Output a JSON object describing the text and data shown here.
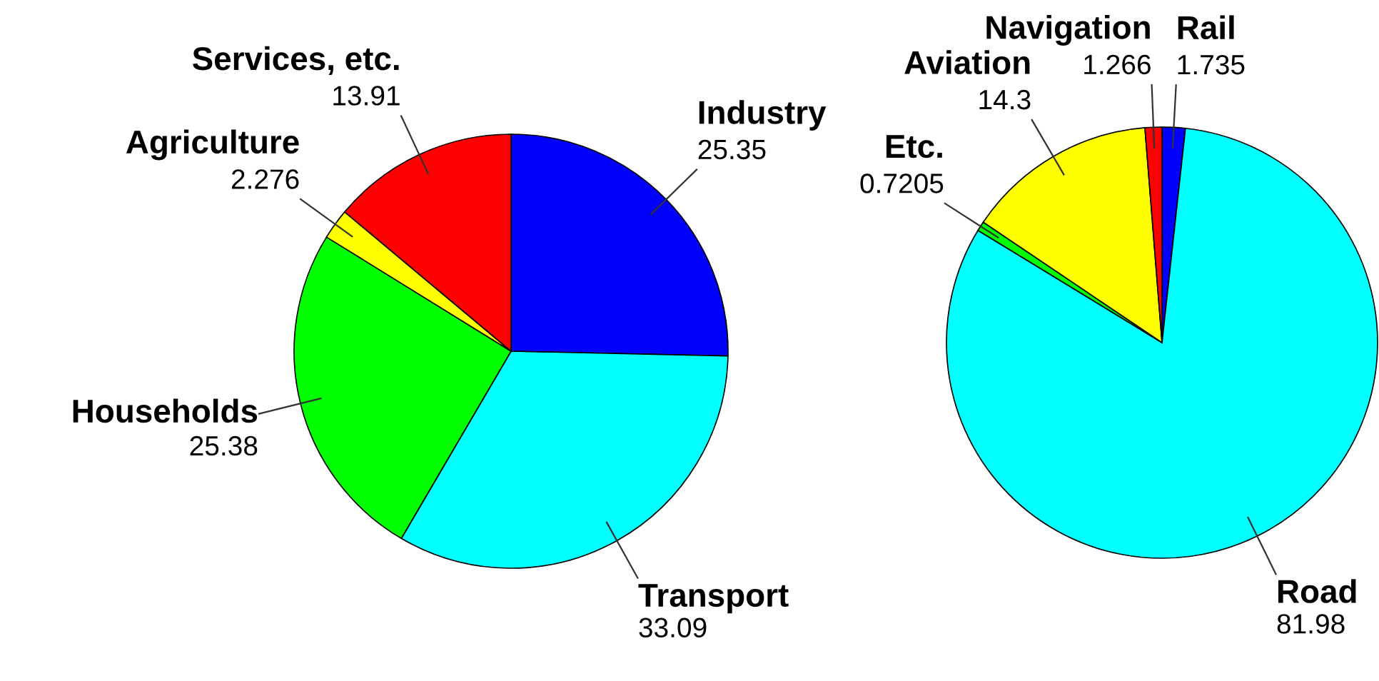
{
  "chart_data": [
    {
      "type": "pie",
      "categories": [
        "Industry",
        "Transport",
        "Households",
        "Agriculture",
        "Services, etc."
      ],
      "values": [
        25.35,
        33.09,
        25.38,
        2.276,
        13.91
      ],
      "colors": [
        "#0000ff",
        "#00ffff",
        "#00ff00",
        "#ffff00",
        "#ff0000"
      ],
      "data_labels": true
    },
    {
      "type": "pie",
      "categories": [
        "Rail",
        "Road",
        "Etc.",
        "Aviation",
        "Navigation"
      ],
      "values": [
        1.735,
        81.98,
        0.7205,
        14.3,
        1.266
      ],
      "colors": [
        "#0000ff",
        "#00ffff",
        "#00ff00",
        "#ffff00",
        "#ff0000"
      ],
      "data_labels": true
    }
  ]
}
